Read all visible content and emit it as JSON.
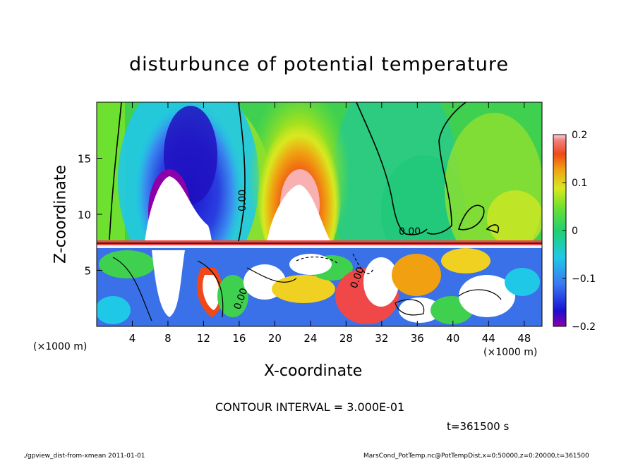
{
  "chart_data": {
    "type": "heatmap",
    "title": "disturbunce of potential temperature",
    "xlabel": "X-coordinate",
    "ylabel": "Z-coordinate",
    "x_unit": "(×1000 m)",
    "y_unit": "(×1000 m)",
    "xlim": [
      0,
      50
    ],
    "ylim": [
      0,
      20
    ],
    "x_ticks": [
      4,
      8,
      12,
      16,
      20,
      24,
      28,
      32,
      36,
      40,
      44,
      48
    ],
    "y_ticks": [
      5,
      10,
      15
    ],
    "colorbar": {
      "range": [
        -0.2,
        0.2
      ],
      "tick_values": [
        0.2,
        0.1,
        0,
        -0.1,
        -0.2
      ],
      "tick_labels": [
        "0.2",
        "0.1",
        "0",
        "−0.1",
        "−0.2"
      ]
    },
    "contour_labels": [
      "0.00",
      "0.00",
      "0.00",
      "0.00"
    ],
    "features": [
      {
        "kind": "negative-anomaly",
        "x": 10,
        "z_bottom": 7.5,
        "z_top": 19,
        "min": -0.2
      },
      {
        "kind": "positive-anomaly",
        "x": 23,
        "z_bottom": 7.5,
        "z_top": 19,
        "max": 0.2
      },
      {
        "kind": "positive-anomaly",
        "x": 33,
        "z_bottom": 7.5,
        "z_top": 12,
        "max": 0.03
      },
      {
        "kind": "boundary-layer",
        "z_top": 7.5
      }
    ]
  },
  "contour_interval": "CONTOUR INTERVAL = 3.000E-01",
  "time_label": "t=361500 s",
  "footer_left": "./gpview_dist-from-xmean  2011-01-01",
  "footer_right": "MarsCond_PotTemp.nc@PotTempDist,x=0:50000,z=0:20000,t=361500",
  "colors": {
    "scale": [
      "#8b00a8",
      "#1a10d0",
      "#3a78f0",
      "#20c8e8",
      "#20d070",
      "#6ee030",
      "#d8e820",
      "#f0a010",
      "#f04818",
      "#f08080",
      "#ffffff"
    ]
  }
}
